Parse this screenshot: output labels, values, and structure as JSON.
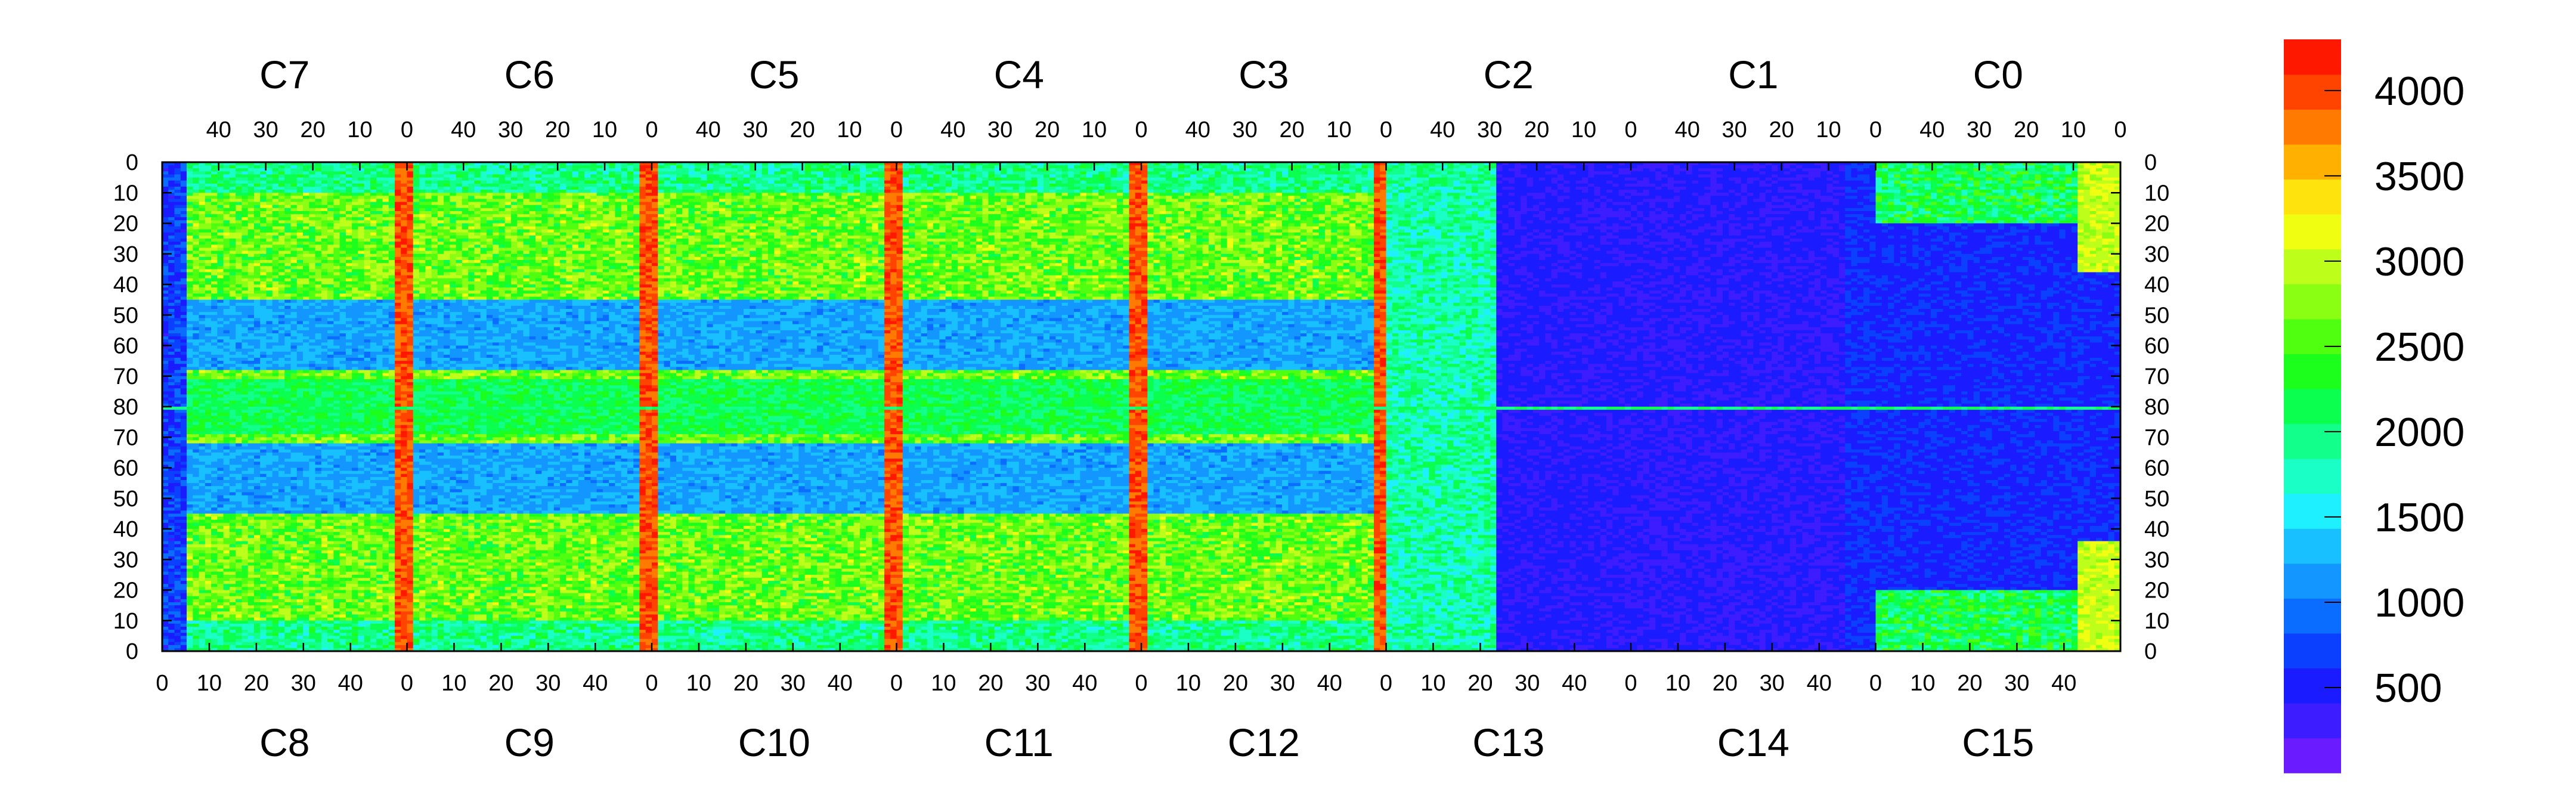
{
  "chart_data": {
    "type": "heatmap",
    "title": "",
    "xlabel": "",
    "ylabel": "",
    "top_chips": [
      "C7",
      "C6",
      "C5",
      "C4",
      "C3",
      "C2",
      "C1",
      "C0"
    ],
    "bottom_chips": [
      "C8",
      "C9",
      "C10",
      "C11",
      "C12",
      "C13",
      "C14",
      "C15"
    ],
    "chip_columns": 52,
    "rows": 160,
    "x_ticks_top": [
      "40",
      "30",
      "20",
      "10",
      "0"
    ],
    "x_ticks_bottom": [
      "0",
      "10",
      "20",
      "30",
      "40"
    ],
    "y_ticks": [
      "0",
      "10",
      "20",
      "30",
      "40",
      "50",
      "60",
      "70",
      "80",
      "70",
      "60",
      "50",
      "40",
      "30",
      "20",
      "10",
      "0"
    ],
    "colorbar": {
      "min": 0,
      "max": 4300,
      "ticks": [
        500,
        1000,
        1500,
        2000,
        2500,
        3000,
        3500,
        4000
      ],
      "tick_labels": [
        "500",
        "1000",
        "1500",
        "2000",
        "2500",
        "3000",
        "3500",
        "4000"
      ],
      "palette": [
        "#6a1bff",
        "#3d1cff",
        "#1a1cff",
        "#0b40ff",
        "#0a6dff",
        "#1396ff",
        "#19c0ff",
        "#1ff0ff",
        "#1affc6",
        "#11ff8a",
        "#0bff4f",
        "#1cff1c",
        "#50ff10",
        "#8aff14",
        "#bdff1a",
        "#f0ff12",
        "#ffe30d",
        "#ffb000",
        "#ff7a00",
        "#ff4400",
        "#ff1800"
      ]
    },
    "value_estimates": {
      "active_high_region": 2800,
      "active_low_region": 1900,
      "hot_edge_columns": 4000,
      "square_pads": 400,
      "right_region_background": 450,
      "dead_region": 300,
      "colorbar_range": [
        0,
        4300
      ]
    }
  }
}
